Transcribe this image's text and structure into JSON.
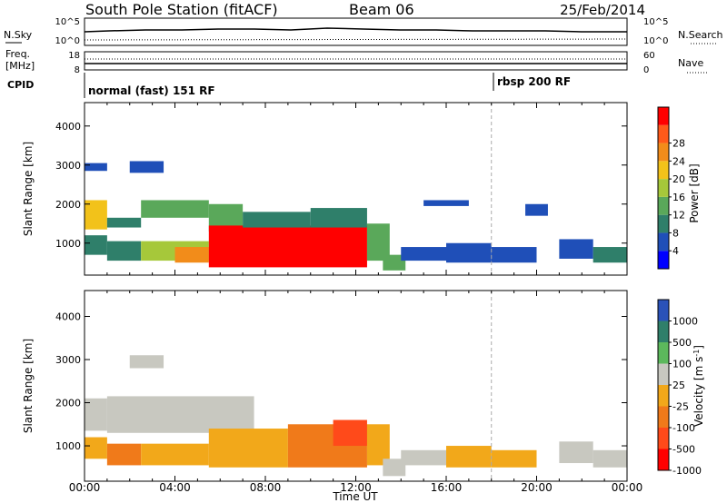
{
  "header": {
    "station": "South Pole Station (fitACF)",
    "beam": "Beam 06",
    "date": "25/Feb/2014"
  },
  "summary_panels": {
    "nsky_label": "N.Sky",
    "nsky_ticks": [
      "10^5",
      "10^0"
    ],
    "nsearch_label": "N.Search",
    "nsearch_ticks": [
      "10^5",
      "10^0"
    ],
    "freq_label_1": "Freq.",
    "freq_label_2": "[MHz]",
    "freq_ticks": [
      "18",
      "8"
    ],
    "nave_label": "Nave",
    "nave_ticks": [
      "60",
      "0"
    ],
    "cpid_label": "CPID",
    "cpid_modes": [
      {
        "name": "normal (fast) 151 RF",
        "start_hour": 0
      },
      {
        "name": "rbsp 200 RF",
        "start_hour": 18
      }
    ]
  },
  "chart_data": [
    {
      "type": "heatmap",
      "title": "",
      "parameter": "Power",
      "xlabel": "Time UT",
      "ylabel": "Slant Range [km]",
      "xlim": [
        0,
        24
      ],
      "ylim": [
        180,
        4600
      ],
      "x_ticks": [
        "00:00",
        "04:00",
        "08:00",
        "12:00",
        "16:00",
        "20:00",
        "00:00"
      ],
      "y_ticks": [
        1000,
        2000,
        3000,
        4000
      ],
      "colorbar": {
        "label": "Power [dB]",
        "range": [
          0,
          32
        ],
        "ticks": [
          "4",
          "8",
          "12",
          "16",
          "20",
          "24",
          "28"
        ],
        "colors": [
          "#0000ff",
          "#1f4fb8",
          "#2f7f6a",
          "#5aa85a",
          "#a6c83a",
          "#f2c21a",
          "#f28c1a",
          "#ff5a1a",
          "#ff0000"
        ]
      },
      "regions": [
        {
          "t0": 0.0,
          "t1": 1.0,
          "r0": 1350,
          "r1": 2100,
          "value": 18
        },
        {
          "t0": 0.0,
          "t1": 1.0,
          "r0": 700,
          "r1": 1200,
          "value": 10
        },
        {
          "t0": 0.0,
          "t1": 1.0,
          "r0": 2850,
          "r1": 3050,
          "value": 6
        },
        {
          "t0": 1.0,
          "t1": 2.5,
          "r0": 1400,
          "r1": 1650,
          "value": 9
        },
        {
          "t0": 1.0,
          "t1": 2.5,
          "r0": 550,
          "r1": 1050,
          "value": 10
        },
        {
          "t0": 2.0,
          "t1": 3.5,
          "r0": 2800,
          "r1": 3100,
          "value": 7
        },
        {
          "t0": 2.5,
          "t1": 5.5,
          "r0": 1650,
          "r1": 2100,
          "value": 14
        },
        {
          "t0": 2.5,
          "t1": 5.5,
          "r0": 550,
          "r1": 1050,
          "value": 16
        },
        {
          "t0": 4.0,
          "t1": 5.5,
          "r0": 500,
          "r1": 900,
          "value": 24
        },
        {
          "t0": 5.5,
          "t1": 7.0,
          "r0": 1300,
          "r1": 2000,
          "value": 12
        },
        {
          "t0": 5.5,
          "t1": 12.5,
          "r0": 380,
          "r1": 1450,
          "value": 30
        },
        {
          "t0": 7.0,
          "t1": 10.0,
          "r0": 1400,
          "r1": 1800,
          "value": 10
        },
        {
          "t0": 10.0,
          "t1": 12.5,
          "r0": 1400,
          "r1": 1900,
          "value": 9
        },
        {
          "t0": 12.5,
          "t1": 13.5,
          "r0": 550,
          "r1": 1500,
          "value": 12
        },
        {
          "t0": 13.2,
          "t1": 14.2,
          "r0": 300,
          "r1": 700,
          "value": 11
        },
        {
          "t0": 14.0,
          "t1": 16.0,
          "r0": 550,
          "r1": 900,
          "value": 6
        },
        {
          "t0": 15.0,
          "t1": 17.0,
          "r0": 1950,
          "r1": 2100,
          "value": 5
        },
        {
          "t0": 16.0,
          "t1": 18.0,
          "r0": 500,
          "r1": 1000,
          "value": 5
        },
        {
          "t0": 18.0,
          "t1": 20.0,
          "r0": 500,
          "r1": 900,
          "value": 5
        },
        {
          "t0": 19.5,
          "t1": 20.5,
          "r0": 1700,
          "r1": 2000,
          "value": 4
        },
        {
          "t0": 21.0,
          "t1": 22.5,
          "r0": 600,
          "r1": 1100,
          "value": 6
        },
        {
          "t0": 22.5,
          "t1": 24.0,
          "r0": 500,
          "r1": 900,
          "value": 8
        }
      ]
    },
    {
      "type": "heatmap",
      "title": "",
      "parameter": "Velocity",
      "xlabel": "Time UT",
      "ylabel": "Slant Range [km]",
      "xlim": [
        0,
        24
      ],
      "ylim": [
        180,
        4600
      ],
      "x_ticks": [
        "00:00",
        "04:00",
        "08:00",
        "12:00",
        "16:00",
        "20:00",
        "00:00"
      ],
      "y_ticks": [
        1000,
        2000,
        3000,
        4000
      ],
      "colorbar": {
        "label": "Velocity [m s-1]",
        "range": [
          -1200,
          1200
        ],
        "ticks": [
          "1000",
          "500",
          "100",
          "25",
          "-25",
          "-100",
          "-500",
          "-1000"
        ],
        "colors": [
          "#ff0000",
          "#ff4a1a",
          "#f07a1a",
          "#f2a81a",
          "#c8c8c0",
          "#5cb85c",
          "#2f7f6a",
          "#2a52b8"
        ]
      },
      "regions": [
        {
          "t0": 0.0,
          "t1": 1.0,
          "r0": 1350,
          "r1": 2100,
          "value": 0
        },
        {
          "t0": 0.0,
          "t1": 1.0,
          "r0": 700,
          "r1": 1200,
          "value": -300
        },
        {
          "t0": 1.0,
          "t1": 2.5,
          "r0": 550,
          "r1": 1050,
          "value": -350
        },
        {
          "t0": 2.0,
          "t1": 3.5,
          "r0": 2800,
          "r1": 3100,
          "value": 0
        },
        {
          "t0": 1.0,
          "t1": 7.5,
          "r0": 1300,
          "r1": 2150,
          "value": 0
        },
        {
          "t0": 2.5,
          "t1": 5.5,
          "r0": 550,
          "r1": 1050,
          "value": -300
        },
        {
          "t0": 5.5,
          "t1": 9.0,
          "r0": 500,
          "r1": 1400,
          "value": -150
        },
        {
          "t0": 9.0,
          "t1": 12.5,
          "r0": 500,
          "r1": 1500,
          "value": -450
        },
        {
          "t0": 11.0,
          "t1": 12.5,
          "r0": 1000,
          "r1": 1600,
          "value": -800
        },
        {
          "t0": 12.5,
          "t1": 13.5,
          "r0": 550,
          "r1": 1500,
          "value": -200
        },
        {
          "t0": 13.2,
          "t1": 14.2,
          "r0": 300,
          "r1": 700,
          "value": 200
        },
        {
          "t0": 14.0,
          "t1": 16.0,
          "r0": 550,
          "r1": 900,
          "value": 250
        },
        {
          "t0": 16.0,
          "t1": 18.0,
          "r0": 500,
          "r1": 1000,
          "value": -200
        },
        {
          "t0": 18.0,
          "t1": 20.0,
          "r0": 500,
          "r1": 900,
          "value": -300
        },
        {
          "t0": 21.0,
          "t1": 22.5,
          "r0": 600,
          "r1": 1100,
          "value": 150
        },
        {
          "t0": 22.5,
          "t1": 24.0,
          "r0": 500,
          "r1": 900,
          "value": 200
        }
      ]
    }
  ]
}
